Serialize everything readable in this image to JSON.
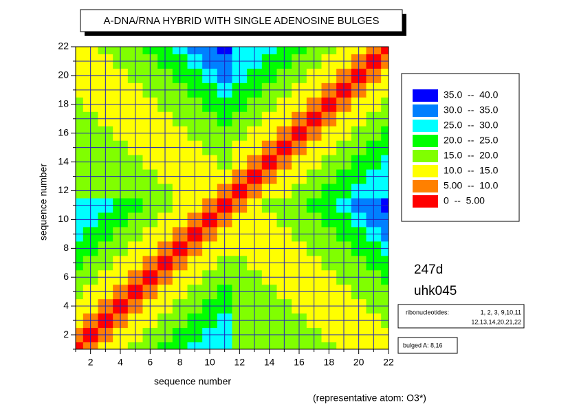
{
  "chart_data": {
    "type": "contour",
    "title": "A-DNA/RNA HYBRID WITH SINGLE ADENOSINE BULGES",
    "xlabel": "sequence number",
    "ylabel": "sequence number",
    "xlim": [
      1,
      22
    ],
    "ylim": [
      1,
      22
    ],
    "xticks": [
      2,
      4,
      6,
      8,
      10,
      12,
      14,
      16,
      18,
      20,
      22
    ],
    "yticks": [
      2,
      4,
      6,
      8,
      10,
      12,
      14,
      16,
      18,
      20,
      22
    ],
    "minor_xticks": [
      1,
      3,
      5,
      7,
      9,
      11,
      13,
      15,
      17,
      19,
      21
    ],
    "minor_yticks": [
      1,
      3,
      5,
      7,
      9,
      11,
      13,
      15,
      17,
      19,
      21
    ],
    "grid": true,
    "grid_color": "#2020c0",
    "levels": [
      0,
      5,
      10,
      15,
      20,
      25,
      30,
      35,
      40
    ],
    "legend": [
      {
        "label": "35.0  --  40.0",
        "color": "#0000ff"
      },
      {
        "label": "30.0  --  35.0",
        "color": "#0080ff"
      },
      {
        "label": "25.0  --  30.0",
        "color": "#00ffff"
      },
      {
        "label": "20.0  --  25.0",
        "color": "#00ff00"
      },
      {
        "label": "15.0  --  20.0",
        "color": "#80ff00"
      },
      {
        "label": "10.0  --  15.0",
        "color": "#ffff00"
      },
      {
        "label": "5.00  --  10.0",
        "color": "#ff8000"
      },
      {
        "label": "0  --  5.00",
        "color": "#ff0000"
      }
    ],
    "z": [
      [
        0,
        5.5,
        10.5,
        14.5,
        17.5,
        19.5,
        21.5,
        23.5,
        25,
        26,
        27,
        19,
        18.5,
        18,
        17.5,
        17,
        16,
        15,
        14,
        13,
        11,
        11
      ],
      [
        5.5,
        0,
        5.5,
        10.5,
        14.5,
        17.5,
        19.5,
        21.5,
        23.5,
        25,
        26,
        18.5,
        18,
        17.5,
        17,
        16,
        15,
        14,
        13,
        11,
        11,
        12
      ],
      [
        10.5,
        5.5,
        0,
        5.5,
        10.5,
        14.5,
        17.5,
        19.5,
        21.5,
        23.5,
        25,
        18,
        17.5,
        17,
        16,
        15,
        14,
        13,
        11,
        11,
        12,
        15
      ],
      [
        14.5,
        10.5,
        5.5,
        0,
        5.5,
        10.5,
        14.5,
        17.5,
        19.5,
        21.5,
        23.5,
        17.5,
        17,
        16,
        15,
        14,
        13,
        11,
        11,
        12,
        15,
        17
      ],
      [
        17.5,
        14.5,
        10.5,
        5.5,
        0,
        5.5,
        10.5,
        14.5,
        17.5,
        19.5,
        21.5,
        17,
        16,
        15,
        14,
        13,
        11,
        11,
        12,
        15,
        17,
        18
      ],
      [
        19.5,
        17.5,
        14.5,
        10.5,
        5.5,
        0,
        5.5,
        10.5,
        14.5,
        17.5,
        19.5,
        16,
        15,
        14,
        13,
        11,
        11,
        12,
        15,
        17,
        18,
        20
      ],
      [
        21.5,
        19.5,
        17.5,
        14.5,
        10.5,
        5.5,
        0,
        5.5,
        10.5,
        14.5,
        17.5,
        15,
        14,
        13,
        11,
        11,
        12,
        15,
        17,
        18,
        20,
        24
      ],
      [
        23.5,
        21.5,
        19.5,
        17.5,
        14.5,
        10.5,
        5.5,
        0,
        5.5,
        10.5,
        14.5,
        14,
        13,
        11,
        11,
        12,
        15,
        17,
        18,
        20,
        24,
        28
      ],
      [
        25,
        23.5,
        21.5,
        19.5,
        17.5,
        14.5,
        10.5,
        5.5,
        0,
        5.5,
        10.5,
        13,
        11,
        11,
        12,
        15,
        17,
        18,
        20,
        24,
        28,
        31
      ],
      [
        26,
        25,
        23.5,
        21.5,
        19.5,
        17.5,
        14.5,
        10.5,
        5.5,
        0,
        5.5,
        11,
        11,
        12,
        15,
        17,
        18,
        20,
        24,
        28,
        31,
        34
      ],
      [
        27,
        26,
        25,
        23.5,
        21.5,
        19.5,
        17.5,
        14.5,
        10.5,
        5.5,
        0,
        6,
        12,
        15,
        17,
        18,
        20,
        24,
        28,
        31,
        34,
        37
      ],
      [
        19,
        18.5,
        18,
        17.5,
        17,
        16,
        15,
        14,
        13,
        11,
        6,
        0,
        5.5,
        10.5,
        14.5,
        17.5,
        19.5,
        21.5,
        23.5,
        25,
        26,
        27
      ],
      [
        18.5,
        18,
        17.5,
        17,
        16,
        15,
        14,
        13,
        11,
        11,
        12,
        5.5,
        0,
        5.5,
        10.5,
        14.5,
        17.5,
        19.5,
        21.5,
        23.5,
        25,
        26
      ],
      [
        18,
        17.5,
        17,
        16,
        15,
        14,
        13,
        11,
        11,
        12,
        15,
        10.5,
        5.5,
        0,
        5.5,
        10.5,
        14.5,
        17.5,
        19.5,
        21.5,
        23.5,
        25
      ],
      [
        17.5,
        17,
        16,
        15,
        14,
        13,
        11,
        11,
        12,
        15,
        17,
        14.5,
        10.5,
        5.5,
        0,
        5.5,
        10.5,
        14.5,
        17.5,
        19.5,
        21.5,
        23.5
      ],
      [
        17,
        16,
        15,
        14,
        13,
        11,
        11,
        12,
        15,
        17,
        18,
        17.5,
        14.5,
        10.5,
        5.5,
        0,
        5.5,
        10.5,
        14.5,
        17.5,
        19.5,
        21.5
      ],
      [
        16,
        15,
        14,
        13,
        11,
        11,
        12,
        15,
        17,
        18,
        20,
        19.5,
        17.5,
        14.5,
        10.5,
        5.5,
        0,
        5.5,
        10.5,
        14.5,
        17.5,
        19.5
      ],
      [
        15,
        14,
        13,
        11,
        11,
        12,
        15,
        17,
        18,
        20,
        24,
        21.5,
        19.5,
        17.5,
        14.5,
        10.5,
        5.5,
        0,
        5.5,
        10.5,
        14.5,
        17.5
      ],
      [
        14,
        13,
        11,
        11,
        12,
        15,
        17,
        18,
        20,
        24,
        28,
        23.5,
        21.5,
        19.5,
        17.5,
        14.5,
        10.5,
        5.5,
        0,
        5.5,
        10.5,
        14.5
      ],
      [
        13,
        11,
        11,
        12,
        15,
        17,
        18,
        20,
        24,
        28,
        31,
        25,
        23.5,
        21.5,
        19.5,
        17.5,
        14.5,
        10.5,
        5.5,
        0,
        5.5,
        10.5
      ],
      [
        11,
        11,
        12,
        15,
        17,
        18,
        20,
        24,
        28,
        31,
        34,
        26,
        25,
        23.5,
        21.5,
        19.5,
        17.5,
        14.5,
        10.5,
        5.5,
        0,
        5.5
      ],
      [
        11,
        12,
        15,
        17,
        18,
        20,
        24,
        28,
        31,
        34,
        37,
        27,
        26,
        25,
        23.5,
        21.5,
        19.5,
        17.5,
        14.5,
        10.5,
        5.5,
        0
      ]
    ]
  },
  "annotations": {
    "pdb_id": "247d",
    "code": "uhk045",
    "ribonucleotides_label": "ribonucleotides:",
    "ribonucleotides_line1": "1,  2,  3,  9,10,11",
    "ribonucleotides_line2": "12,13,14,20,21,22",
    "bulged": "bulged A: 8,16",
    "atom_note": "(representative atom: O3*)"
  }
}
